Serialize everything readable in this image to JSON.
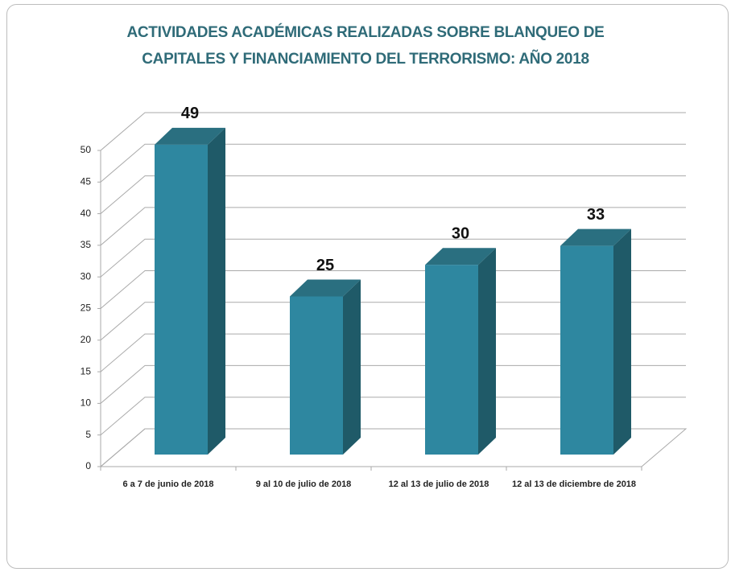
{
  "chart_data": {
    "type": "bar",
    "title": "ACTIVIDADES ACADÉMICAS REALIZADAS SOBRE BLANQUEO DE CAPITALES Y FINANCIAMIENTO DEL TERRORISMO: AÑO 2018",
    "categories": [
      "6 a 7 de junio de 2018",
      "9 al 10 de julio de 2018",
      "12 al 13 de julio de 2018",
      "12 al 13 de diciembre de 2018"
    ],
    "values": [
      49,
      25,
      30,
      33
    ],
    "color": "#2e87a0",
    "ylim": [
      0,
      50
    ],
    "yticks": [
      0,
      5,
      10,
      15,
      20,
      25,
      30,
      35,
      40,
      45,
      50
    ],
    "grid": true
  }
}
